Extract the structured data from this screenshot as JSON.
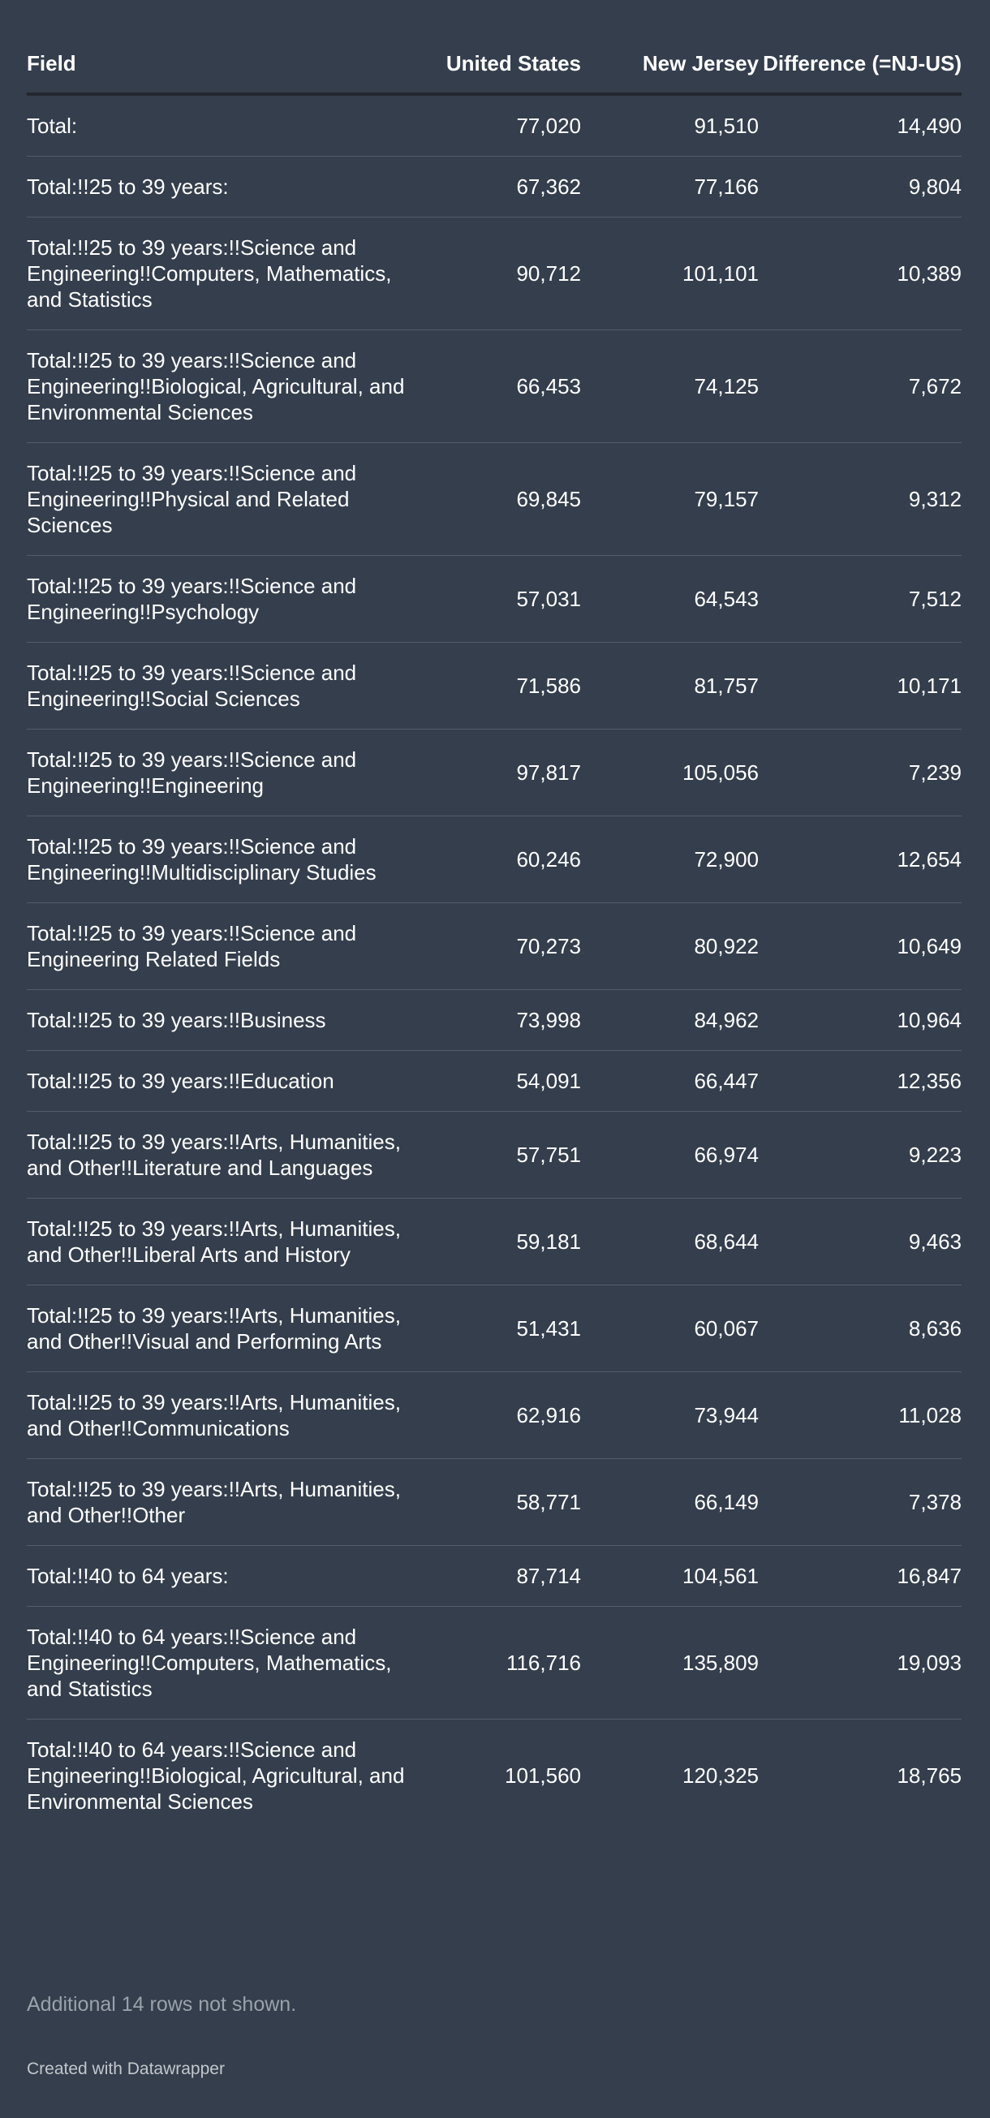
{
  "table": {
    "header": [
      "Field",
      "United States",
      "New Jersey",
      "Difference (=NJ-US)"
    ],
    "rows": [
      [
        "Total:",
        "77,020",
        "91,510",
        "14,490"
      ],
      [
        "Total:!!25 to 39 years:",
        "67,362",
        "77,166",
        "9,804"
      ],
      [
        "Total:!!25 to 39 years:!!Science and Engineering!!Computers, Mathematics, and Statistics",
        "90,712",
        "101,101",
        "10,389"
      ],
      [
        "Total:!!25 to 39 years:!!Science and Engineering!!Biological, Agricultural, and Environmental Sciences",
        "66,453",
        "74,125",
        "7,672"
      ],
      [
        "Total:!!25 to 39 years:!!Science and Engineering!!Physical and Related Sciences",
        "69,845",
        "79,157",
        "9,312"
      ],
      [
        "Total:!!25 to 39 years:!!Science and Engineering!!Psychology",
        "57,031",
        "64,543",
        "7,512"
      ],
      [
        "Total:!!25 to 39 years:!!Science and Engineering!!Social Sciences",
        "71,586",
        "81,757",
        "10,171"
      ],
      [
        "Total:!!25 to 39 years:!!Science and Engineering!!Engineering",
        "97,817",
        "105,056",
        "7,239"
      ],
      [
        "Total:!!25 to 39 years:!!Science and Engineering!!Multidisciplinary Studies",
        "60,246",
        "72,900",
        "12,654"
      ],
      [
        "Total:!!25 to 39 years:!!Science and Engineering Related Fields",
        "70,273",
        "80,922",
        "10,649"
      ],
      [
        "Total:!!25 to 39 years:!!Business",
        "73,998",
        "84,962",
        "10,964"
      ],
      [
        "Total:!!25 to 39 years:!!Education",
        "54,091",
        "66,447",
        "12,356"
      ],
      [
        "Total:!!25 to 39 years:!!Arts, Humanities, and Other!!Literature and Languages",
        "57,751",
        "66,974",
        "9,223"
      ],
      [
        "Total:!!25 to 39 years:!!Arts, Humanities, and Other!!Liberal Arts and History",
        "59,181",
        "68,644",
        "9,463"
      ],
      [
        "Total:!!25 to 39 years:!!Arts, Humanities, and Other!!Visual and Performing Arts",
        "51,431",
        "60,067",
        "8,636"
      ],
      [
        "Total:!!25 to 39 years:!!Arts, Humanities, and Other!!Communications",
        "62,916",
        "73,944",
        "11,028"
      ],
      [
        "Total:!!25 to 39 years:!!Arts, Humanities, and Other!!Other",
        "58,771",
        "66,149",
        "7,378"
      ],
      [
        "Total:!!40 to 64 years:",
        "87,714",
        "104,561",
        "16,847"
      ],
      [
        "Total:!!40 to 64 years:!!Science and Engineering!!Computers, Mathematics, and Statistics",
        "116,716",
        "135,809",
        "19,093"
      ],
      [
        "Total:!!40 to 64 years:!!Science and Engineering!!Biological, Agricultural, and Environmental Sciences",
        "101,560",
        "120,325",
        "18,765"
      ]
    ]
  },
  "footer": {
    "note": "Additional 14 rows not shown.",
    "credit": "Created with Datawrapper"
  }
}
